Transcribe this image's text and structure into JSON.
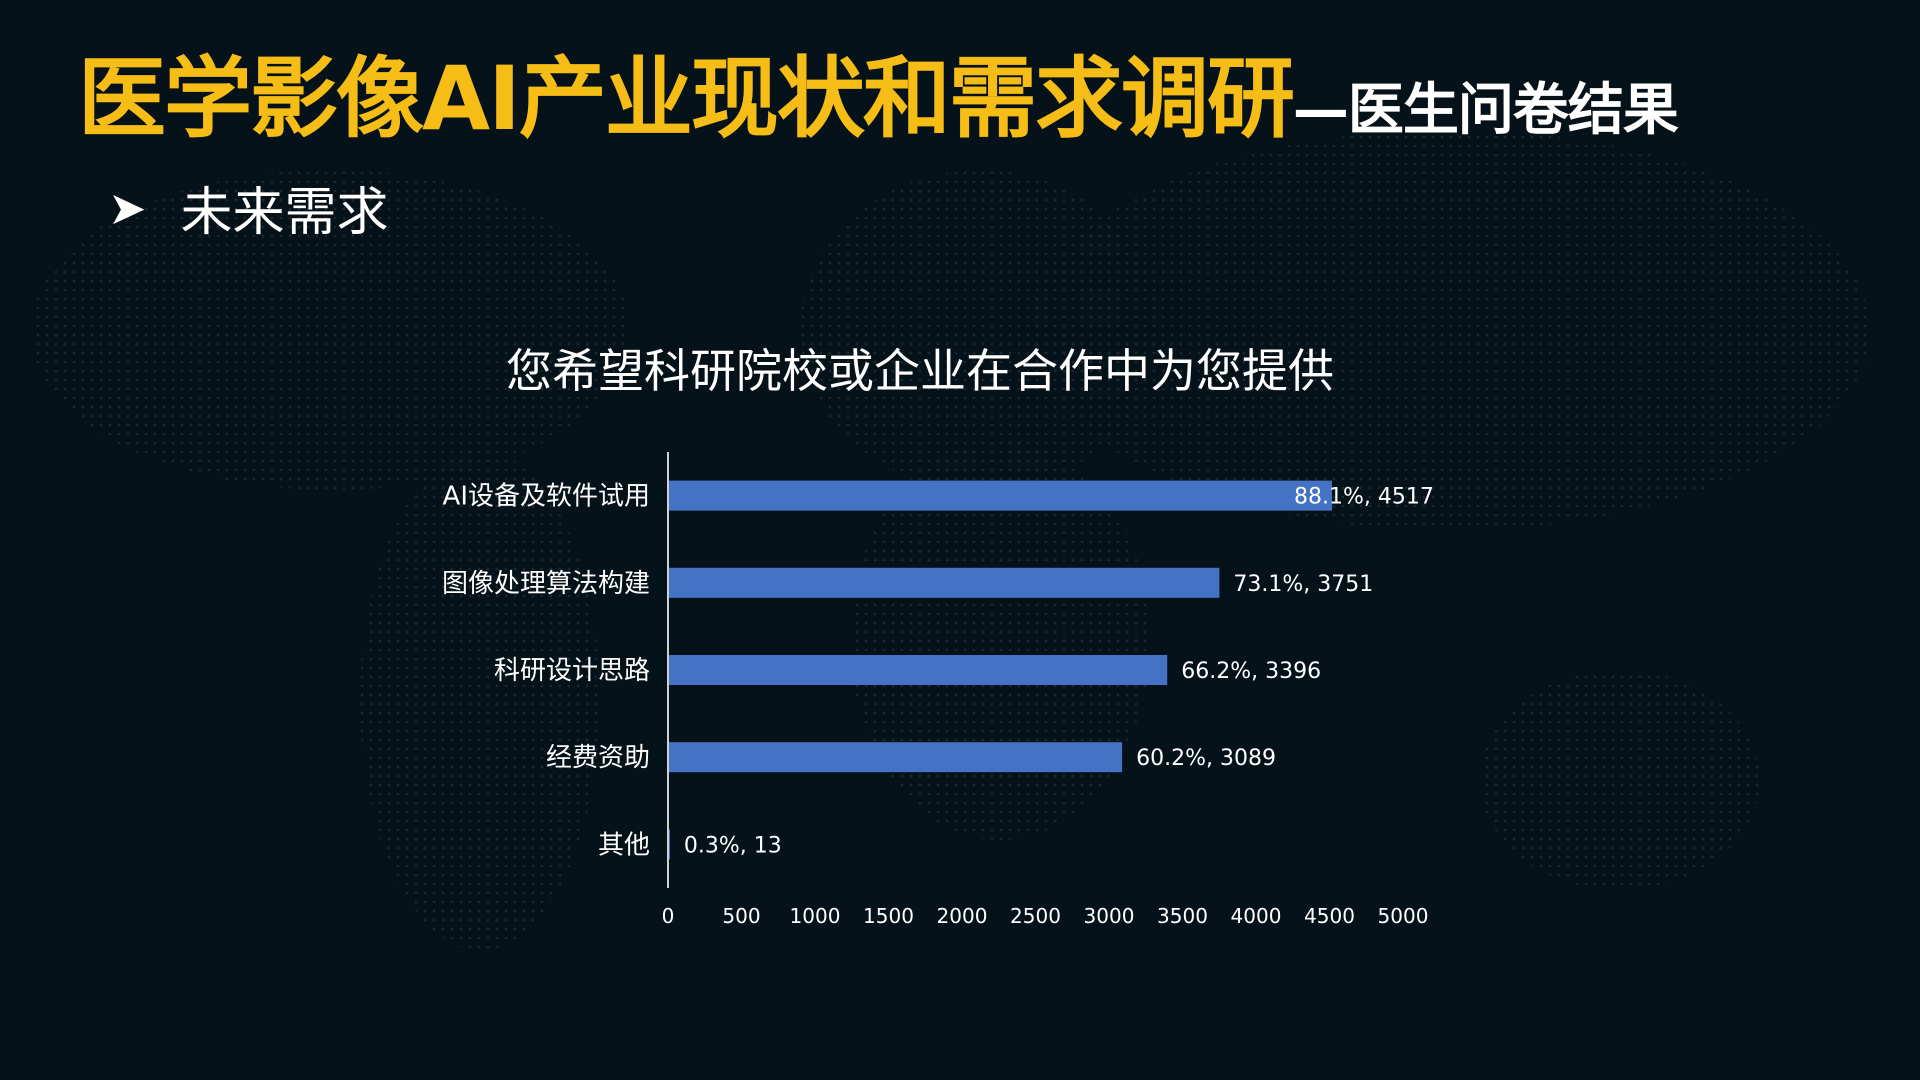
{
  "header": {
    "title_main": "医学影像AI产业现状和需求调研",
    "title_sub": "—医生问卷结果"
  },
  "section": {
    "bullet_icon": "arrow-bullet-icon",
    "label": "未来需求"
  },
  "colors": {
    "background": "#06121a",
    "title": "#f6bd16",
    "bar": "#4472c4",
    "text": "#ffffff"
  },
  "chart_data": {
    "type": "bar",
    "orientation": "horizontal",
    "title": "您希望科研院校或企业在合作中为您提供",
    "categories": [
      "AI设备及软件试用",
      "图像处理算法构建",
      "科研设计思路",
      "经费资助",
      "其他"
    ],
    "values": [
      4517,
      3751,
      3396,
      3089,
      13
    ],
    "data_labels": [
      "88.1%, 4517",
      "73.1%, 3751",
      "66.2%, 3396",
      "60.2%, 3089",
      "0.3%, 13"
    ],
    "xlim": [
      0,
      5000
    ],
    "xticks": [
      "0",
      "500",
      "1000",
      "1500",
      "2000",
      "2500",
      "3000",
      "3500",
      "4000",
      "4500",
      "5000"
    ],
    "grid": false,
    "legend": "none"
  }
}
